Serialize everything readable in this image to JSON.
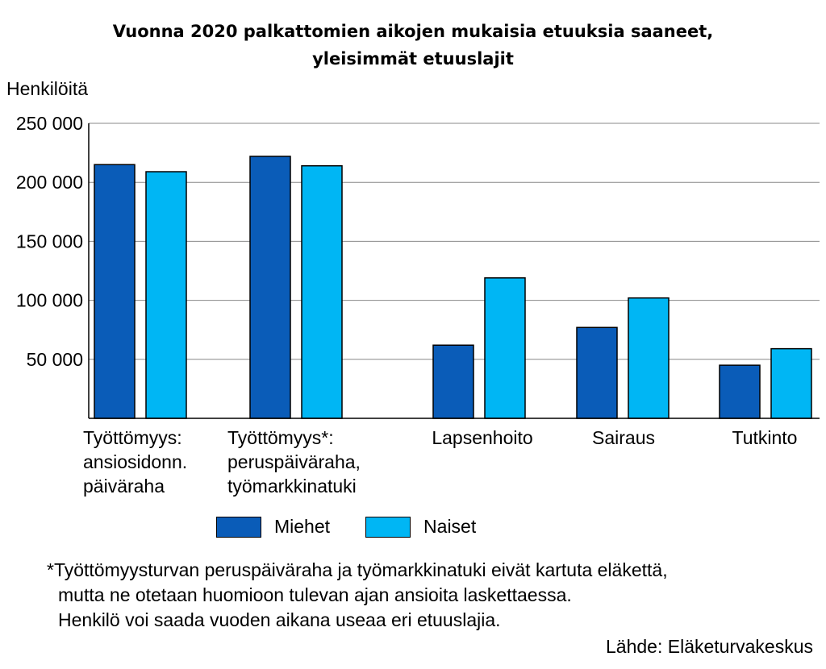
{
  "chart_data": {
    "type": "bar",
    "title_lines": [
      "Vuonna 2020 palkattomien aikojen mukaisia etuuksia saaneet,",
      "yleisimmät etuuslajit"
    ],
    "ylabel": "Henkilöitä",
    "ylim": [
      0,
      250000
    ],
    "yticks": [
      50000,
      100000,
      150000,
      200000,
      250000
    ],
    "ytick_labels": [
      "50 000",
      "100 000",
      "150 000",
      "200 000",
      "250 000"
    ],
    "categories": [
      [
        "Työttömyys:",
        "ansiosidonn.",
        "päiväraha"
      ],
      [
        "Työttömyys*:",
        "peruspäiväraha,",
        "työmarkkinatuki"
      ],
      [
        "Lapsenhoito"
      ],
      [
        "Sairaus"
      ],
      [
        "Tutkinto"
      ]
    ],
    "series": [
      {
        "name": "Miehet",
        "color": "#0a5cb8",
        "values": [
          215000,
          222000,
          62000,
          77000,
          45000
        ]
      },
      {
        "name": "Naiset",
        "color": "#00b6f4",
        "values": [
          209000,
          214000,
          119000,
          102000,
          59000
        ]
      }
    ],
    "grid": true,
    "legend_position": "bottom"
  },
  "legend": {
    "miehet": "Miehet",
    "naiset": "Naiset"
  },
  "footnote": [
    "*Työttömyysturvan peruspäiväraha ja työmarkkinatuki eivät kartuta eläkettä,",
    "mutta ne otetaan huomioon tulevan ajan ansioita laskettaessa.",
    "Henkilö voi saada vuoden aikana useaa eri etuuslajia."
  ],
  "source": "Lähde: Eläketurvakeskus"
}
